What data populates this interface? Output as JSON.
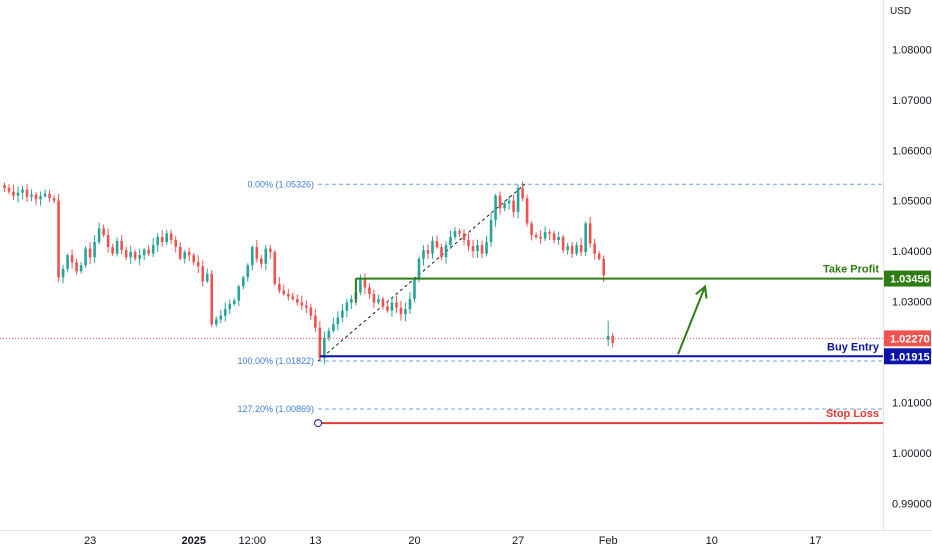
{
  "currency": "USD",
  "colors": {
    "up": "#26a69a",
    "down": "#ef5350",
    "take_profit": "#2e7d14",
    "buy_entry": "#0a14a8",
    "stop_loss": "#e53935",
    "current_price": "#ef5350",
    "fib": "#5b8fd6",
    "arrow": "#2e7d14"
  },
  "annotations": {
    "take_profit": {
      "label": "Take Profit",
      "price_text": "1.03456",
      "value": 1.03456
    },
    "buy_entry": {
      "label": "Buy Entry",
      "price_text": "1.01915",
      "value": 1.01915
    },
    "stop_loss": {
      "label": "Stop Loss",
      "value": 1.0059
    },
    "current_price": {
      "price_text": "1.02270",
      "value": 1.0227
    },
    "fib_levels": [
      {
        "label": "0.00% (1.05326)",
        "value": 1.05326
      },
      {
        "label": "100.00% (1.01822)",
        "value": 1.01822
      },
      {
        "label": "127.20% (1.00869)",
        "value": 1.00869
      }
    ]
  },
  "chart_data": {
    "type": "candlestick",
    "y_axis": {
      "ticks": [
        "1.08000",
        "1.07000",
        "1.06000",
        "1.05000",
        "1.04000",
        "1.03000",
        "1.02000",
        "1.01000",
        "1.00000",
        "0.99000"
      ],
      "tick_values": [
        1.08,
        1.07,
        1.06,
        1.05,
        1.04,
        1.03,
        1.02,
        1.01,
        1.0,
        0.99
      ],
      "ylim": [
        0.9847,
        1.0898
      ]
    },
    "x_axis": {
      "ticks": [
        {
          "label": "23",
          "bold": false,
          "index": 19
        },
        {
          "label": "2025",
          "bold": true,
          "index": 42
        },
        {
          "label": "12:00",
          "bold": false,
          "index": 55
        },
        {
          "label": "13",
          "bold": false,
          "index": 69
        },
        {
          "label": "20",
          "bold": false,
          "index": 91
        },
        {
          "label": "27",
          "bold": false,
          "index": 114
        },
        {
          "label": "Feb",
          "bold": false,
          "index": 134
        },
        {
          "label": "10",
          "bold": false,
          "index": 157
        },
        {
          "label": "17",
          "bold": false,
          "index": 180
        }
      ],
      "range": [
        -1,
        195
      ]
    },
    "close_series": [
      1.0525,
      1.0518,
      1.051,
      1.0516,
      1.0522,
      1.0508,
      1.0512,
      1.0503,
      1.0509,
      1.0514,
      1.0505,
      1.05,
      1.0348,
      1.0365,
      1.0392,
      1.0378,
      1.036,
      1.0372,
      1.0405,
      1.0388,
      1.0418,
      1.0445,
      1.0432,
      1.0408,
      1.0395,
      1.042,
      1.0402,
      1.0388,
      1.0398,
      1.0385,
      1.0392,
      1.0403,
      1.0395,
      1.0412,
      1.0428,
      1.0418,
      1.0435,
      1.0422,
      1.0409,
      1.0385,
      1.0398,
      1.0392,
      1.0378,
      1.037,
      1.034,
      1.0355,
      1.0255,
      1.0265,
      1.0272,
      1.0285,
      1.0295,
      1.0302,
      1.033,
      1.0348,
      1.0372,
      1.0408,
      1.0385,
      1.0375,
      1.0405,
      1.0398,
      1.0335,
      1.0322,
      1.0315,
      1.031,
      1.0305,
      1.0298,
      1.0292,
      1.0288,
      1.0272,
      1.0248,
      1.0188,
      1.0228,
      1.0242,
      1.0255,
      1.0268,
      1.0282,
      1.0298,
      1.0305,
      1.0318,
      1.0345,
      1.0328,
      1.0315,
      1.0298,
      1.0305,
      1.029,
      1.0282,
      1.0298,
      1.0288,
      1.0275,
      1.0285,
      1.0305,
      1.0345,
      1.0385,
      1.0402,
      1.0395,
      1.042,
      1.0408,
      1.0388,
      1.0412,
      1.0428,
      1.044,
      1.0435,
      1.0422,
      1.041,
      1.04,
      1.0412,
      1.0395,
      1.0418,
      1.0462,
      1.051,
      1.0485,
      1.0495,
      1.05,
      1.0478,
      1.0525,
      1.0505,
      1.0455,
      1.0432,
      1.0428,
      1.0425,
      1.0438,
      1.0435,
      1.0422,
      1.0428,
      1.0402,
      1.041,
      1.0395,
      1.0412,
      1.0398,
      1.0455,
      1.0415,
      1.0395,
      1.0385,
      1.0352
    ],
    "gap_candles": [
      {
        "index": 134,
        "open": 1.0225,
        "high": 1.0262,
        "low": 1.0212,
        "close": 1.0232
      },
      {
        "index": 135,
        "open": 1.0232,
        "high": 1.0238,
        "low": 1.0209,
        "close": 1.0218
      }
    ]
  }
}
